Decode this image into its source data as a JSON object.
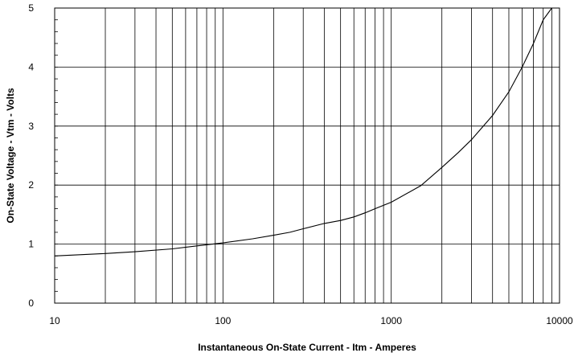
{
  "chart_data": {
    "type": "line",
    "title": "",
    "xlabel": "Instantaneous On-State Current - Itm - Amperes",
    "ylabel": "On-State Voltage - Vtm - Volts",
    "x_scale": "log",
    "xlim": [
      10,
      10000
    ],
    "ylim": [
      0,
      5
    ],
    "grid": true,
    "x_ticks": [
      10,
      100,
      1000,
      10000
    ],
    "x_tick_labels": [
      "10",
      "100",
      "1000",
      "10000"
    ],
    "y_ticks": [
      0,
      1,
      2,
      3,
      4,
      5
    ],
    "y_tick_labels": [
      "0",
      "1",
      "2",
      "3",
      "4",
      "5"
    ],
    "series": [
      {
        "x": [
          10,
          20,
          30,
          50,
          70,
          100,
          150,
          200,
          250,
          300,
          400,
          500,
          600,
          700,
          800,
          1000,
          1500,
          2000,
          2500,
          3000,
          4000,
          5000,
          6000,
          7000,
          8000,
          9000
        ],
        "y": [
          0.8,
          0.84,
          0.87,
          0.92,
          0.97,
          1.02,
          1.09,
          1.15,
          1.2,
          1.26,
          1.35,
          1.4,
          1.46,
          1.53,
          1.6,
          1.71,
          1.99,
          2.3,
          2.55,
          2.77,
          3.18,
          3.58,
          4.0,
          4.4,
          4.8,
          5.0
        ]
      }
    ],
    "colors": {
      "line": "#000000",
      "grid": "#000000",
      "background": "#ffffff"
    }
  }
}
